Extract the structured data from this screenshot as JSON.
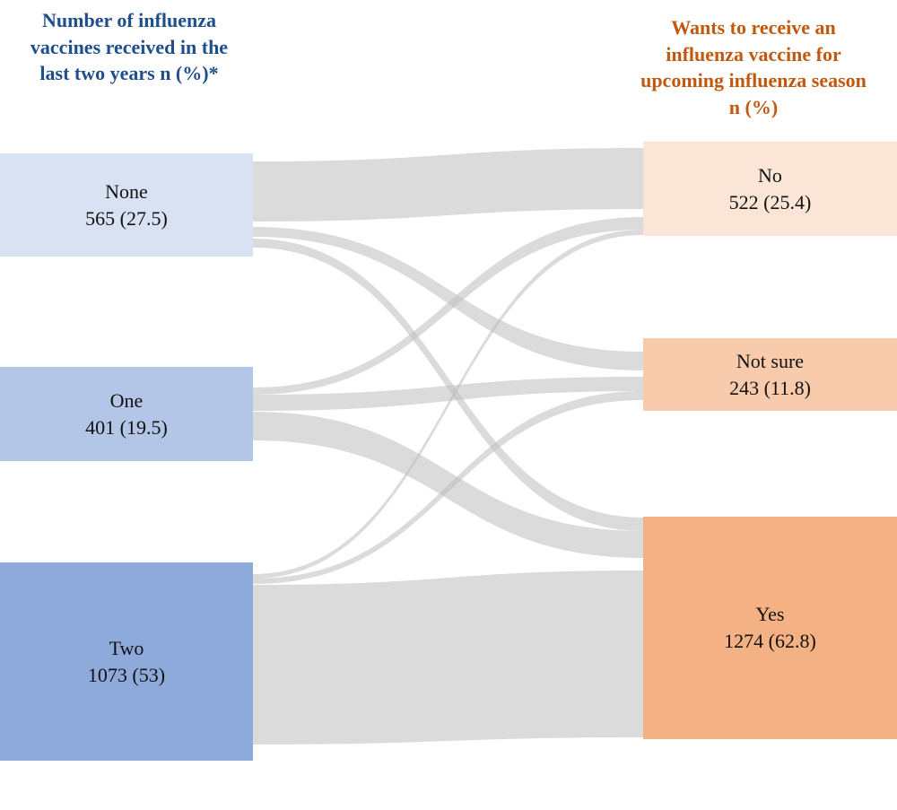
{
  "headers": {
    "left": "Number of influenza\nvaccines received in the\nlast two years n (%)*",
    "right": "Wants to receive an\ninfluenza vaccine for\nupcoming influenza season\nn (%)",
    "left_color": "#1f4e8c",
    "right_color": "#c0590f"
  },
  "source_nodes": [
    {
      "id": "none",
      "label": "None",
      "value": "565 (27.5)",
      "color": "#d9e2f3"
    },
    {
      "id": "one",
      "label": "One",
      "value": "401 (19.5)",
      "color": "#b4c6e7"
    },
    {
      "id": "two",
      "label": "Two",
      "value": "1073 (53)",
      "color": "#8eaadb"
    }
  ],
  "target_nodes": [
    {
      "id": "no",
      "label": "No",
      "value": "522 (25.4)",
      "color": "#fbe5d6"
    },
    {
      "id": "not-sure",
      "label": "Not sure",
      "value": "243 (11.8)",
      "color": "#f8cbad"
    },
    {
      "id": "yes",
      "label": "Yes",
      "value": "1274 (62.8)",
      "color": "#f4b183"
    }
  ],
  "links": [
    {
      "source": "none",
      "target": "no"
    },
    {
      "source": "none",
      "target": "not-sure"
    },
    {
      "source": "none",
      "target": "yes"
    },
    {
      "source": "one",
      "target": "no"
    },
    {
      "source": "one",
      "target": "not-sure"
    },
    {
      "source": "one",
      "target": "yes"
    },
    {
      "source": "two",
      "target": "no"
    },
    {
      "source": "two",
      "target": "not-sure"
    },
    {
      "source": "two",
      "target": "yes"
    }
  ],
  "link_color": "#bdbdbd"
}
